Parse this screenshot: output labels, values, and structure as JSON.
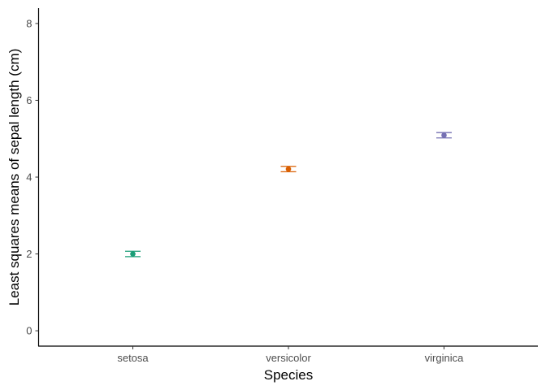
{
  "chart_data": {
    "type": "scatter",
    "title": "",
    "xlabel": "Species",
    "ylabel": "Least squares means of sepal length (cm)",
    "categories": [
      "setosa",
      "versicolor",
      "virginica"
    ],
    "values": [
      2.0,
      4.21,
      5.09
    ],
    "error_low": [
      1.93,
      4.14,
      5.02
    ],
    "error_high": [
      2.07,
      4.28,
      5.16
    ],
    "colors": [
      "#1b9e77",
      "#d95f02",
      "#7570b3"
    ],
    "ylim": [
      -0.4,
      8.4
    ],
    "yticks": [
      0,
      2,
      4,
      6,
      8
    ],
    "grid": false,
    "legend": "none"
  }
}
